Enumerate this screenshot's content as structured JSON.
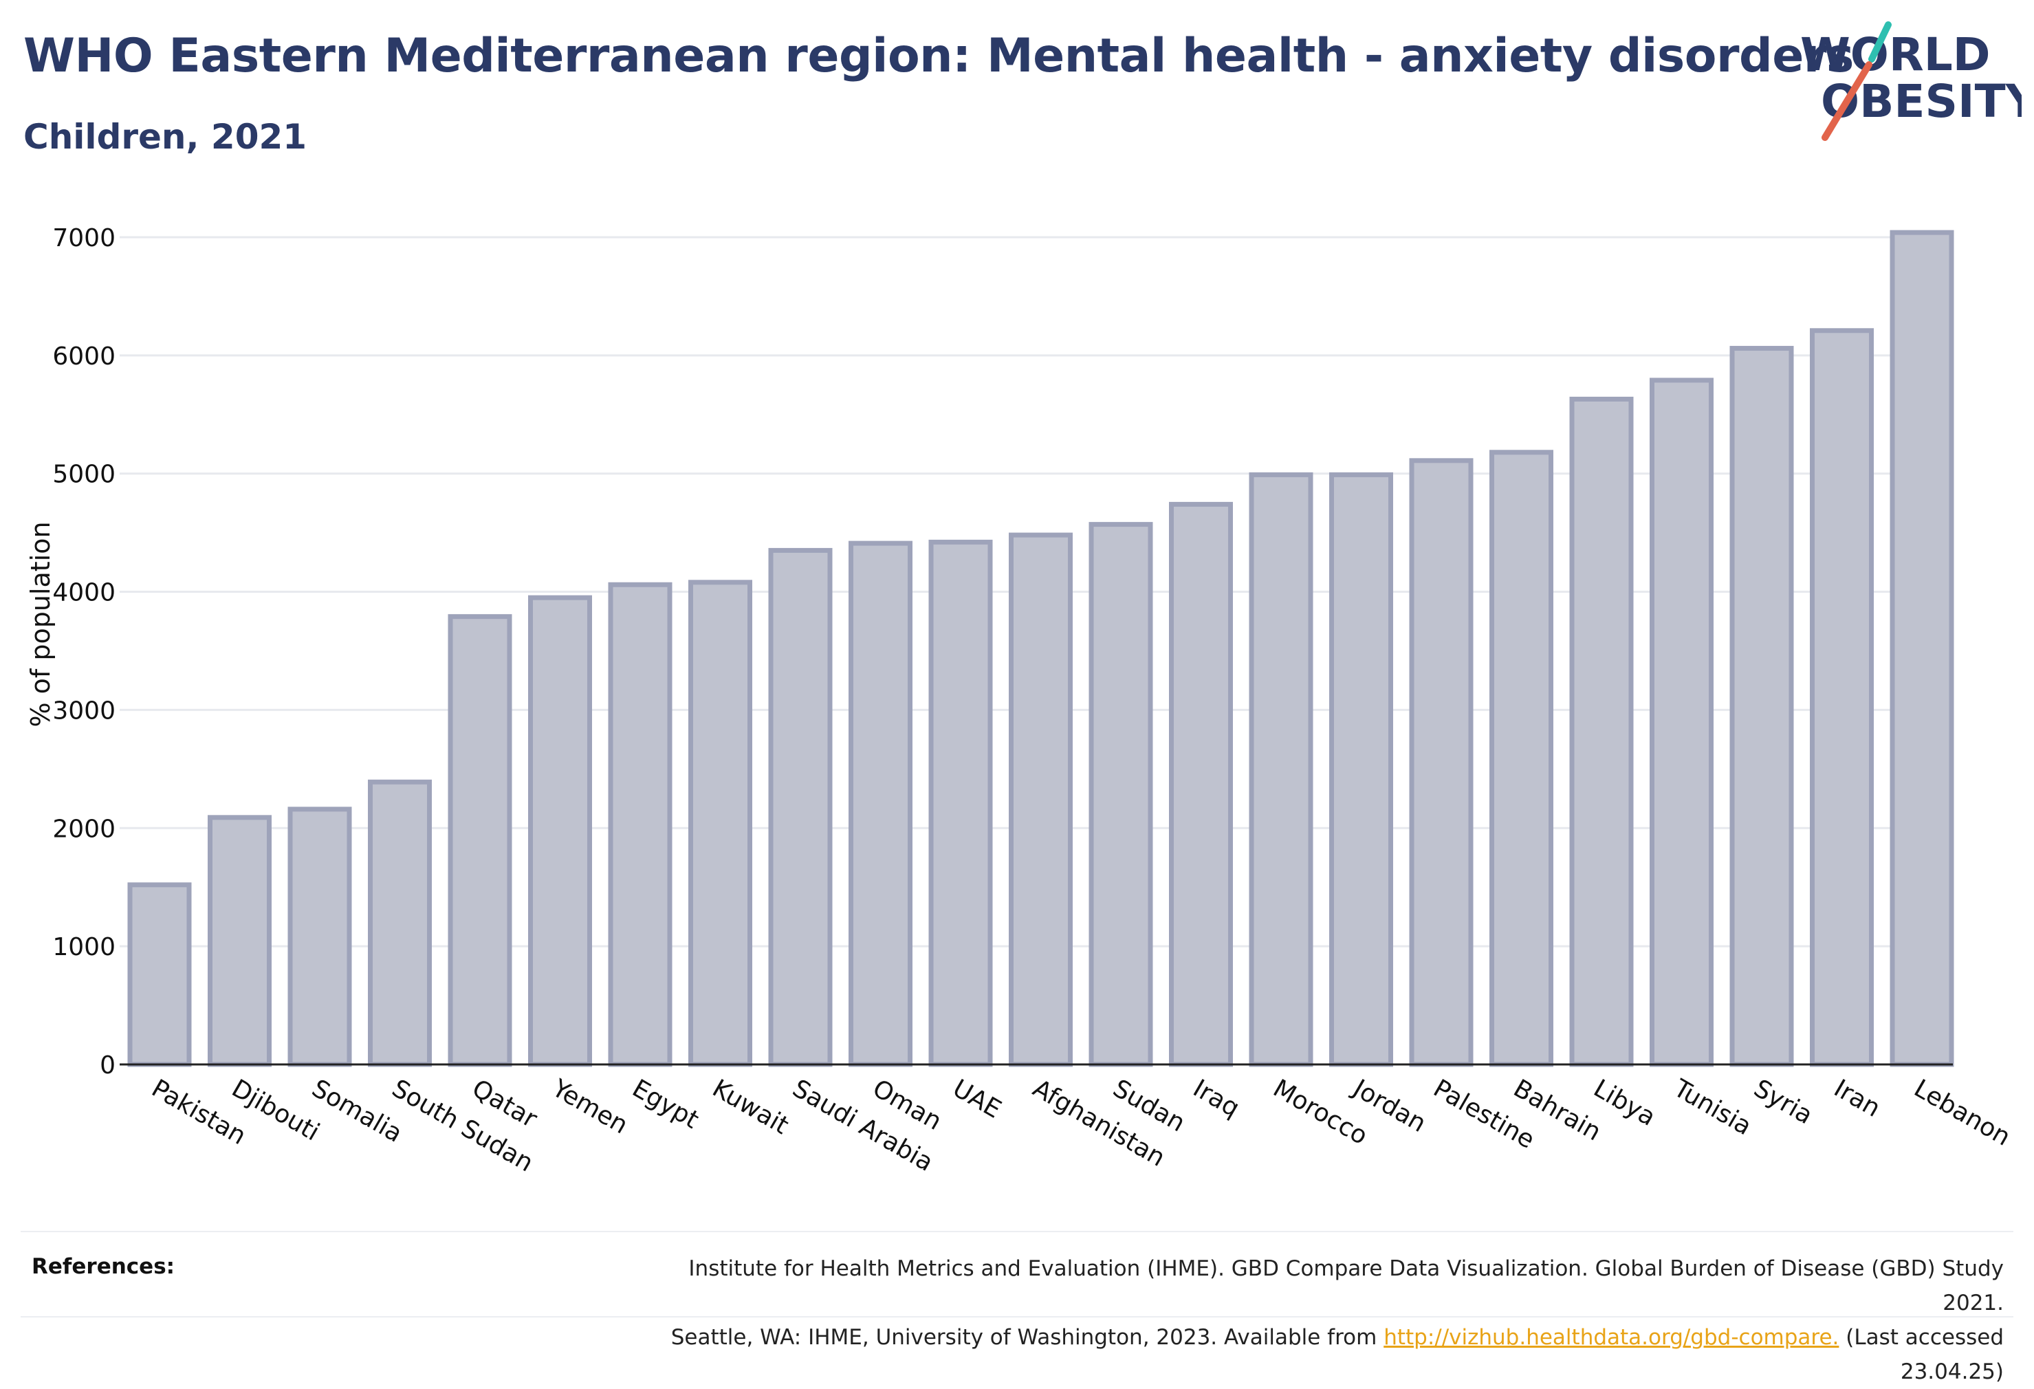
{
  "header": {
    "title": "WHO Eastern Mediterranean region: Mental health - anxiety disorders",
    "subtitle": "Children, 2021"
  },
  "logo": {
    "line1": "WORLD",
    "line2": "OBESITY",
    "accent_colors": [
      "#2ebfb0",
      "#e2644b"
    ]
  },
  "chart_data": {
    "type": "bar",
    "categories": [
      "Pakistan",
      "Djibouti",
      "Somalia",
      "South Sudan",
      "Qatar",
      "Yemen",
      "Egypt",
      "Kuwait",
      "Saudi Arabia",
      "Oman",
      "UAE",
      "Afghanistan",
      "Sudan",
      "Iraq",
      "Morocco",
      "Jordan",
      "Palestine",
      "Bahrain",
      "Libya",
      "Tunisia",
      "Syria",
      "Iran",
      "Lebanon"
    ],
    "values": [
      1520,
      2090,
      2160,
      2390,
      3790,
      3950,
      4060,
      4080,
      4350,
      4410,
      4420,
      4480,
      4570,
      4740,
      4990,
      4990,
      5110,
      5180,
      5630,
      5790,
      6060,
      6210,
      7040
    ],
    "ylabel": "% of population",
    "xlabel": "",
    "ylim": [
      0,
      7000
    ],
    "yticks": [
      0,
      1000,
      2000,
      3000,
      4000,
      5000,
      6000,
      7000
    ],
    "grid": true,
    "bar_fill": "#bfc2cf",
    "bar_stroke": "#9ea3ba"
  },
  "references": {
    "label": "References:",
    "line1": "Institute for Health Metrics and Evaluation (IHME). GBD Compare Data Visualization. Global Burden of Disease (GBD) Study 2021.",
    "line2_before": "Seattle, WA: IHME, University of Washington, 2023. Available from",
    "link": "http://vizhub.healthdata.org/gbd-compare.",
    "line2_after": "(Last accessed 23.04.25)"
  }
}
